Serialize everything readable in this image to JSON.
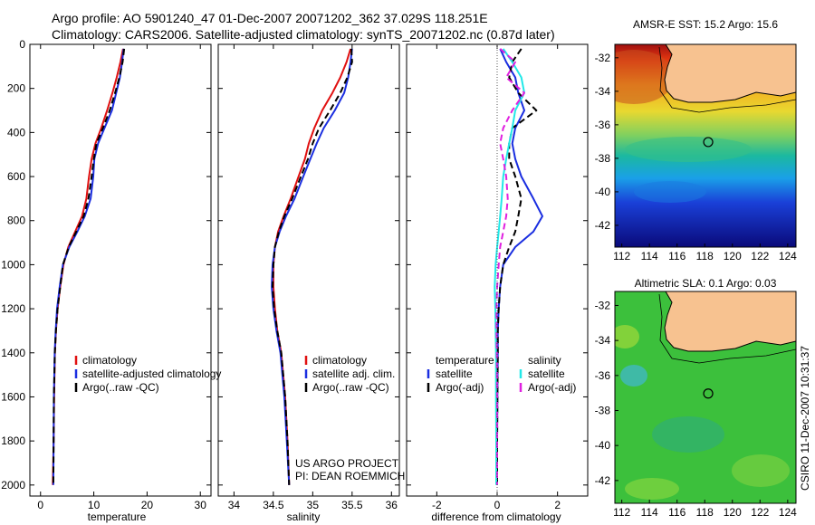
{
  "header": {
    "line1": "Argo profile: AO 5901240_47 01-Dec-2007 20071202_362 37.029S 118.251E",
    "line2": "Climatology: CARS2006. Satellite-adjusted climatology: synTS_20071202.nc (0.87d later)"
  },
  "credit": {
    "project": "US ARGO PROJECT",
    "pi": "PI: DEAN ROEMMICH",
    "stamp": "CSIRO 11-Dec-2007 10:31:37"
  },
  "colors": {
    "climatology": "#e01010",
    "satellite": "#1a2ee0",
    "argo": "#000000",
    "salinity_satellite": "#22e8e8",
    "salinity_argo": "#e020e0",
    "land": "#f7c290"
  },
  "chart_data": [
    {
      "type": "line",
      "id": "temperature",
      "xlabel": "temperature",
      "ylabel": "",
      "xlim": [
        -2,
        32
      ],
      "ylim": [
        2050,
        0
      ],
      "xticks": [
        "0",
        "10",
        "20",
        "30"
      ],
      "yticks": [
        "0",
        "200",
        "400",
        "600",
        "800",
        "1000",
        "1200",
        "1400",
        "1600",
        "1800",
        "2000"
      ],
      "legend": [
        "climatology",
        "satellite-adjusted climatology",
        "Argo(..raw -QC)"
      ],
      "series": [
        {
          "name": "climatology",
          "style": "solid",
          "color": "#e01010",
          "x": [
            15.5,
            15.0,
            14.3,
            13.5,
            12.5,
            11.4,
            10.3,
            9.6,
            9.1,
            8.6,
            7.8,
            6.5,
            5.2,
            4.3,
            3.7,
            3.2,
            2.9,
            2.7,
            2.55,
            2.45,
            2.3
          ],
          "y": [
            20,
            80,
            150,
            220,
            300,
            380,
            450,
            520,
            600,
            700,
            780,
            850,
            920,
            1000,
            1100,
            1200,
            1300,
            1400,
            1600,
            1800,
            2000
          ]
        },
        {
          "name": "satellite-adjusted climatology",
          "style": "solid",
          "color": "#1a2ee0",
          "x": [
            15.6,
            15.3,
            14.9,
            14.2,
            13.4,
            12.0,
            10.8,
            10.1,
            9.9,
            9.4,
            8.3,
            6.9,
            5.4,
            4.2,
            3.6,
            3.1,
            2.85,
            2.65,
            2.5,
            2.45,
            2.4
          ],
          "y": [
            20,
            80,
            150,
            220,
            300,
            380,
            450,
            520,
            600,
            700,
            780,
            850,
            920,
            1000,
            1100,
            1200,
            1300,
            1400,
            1600,
            1800,
            2000
          ]
        },
        {
          "name": "Argo(..raw -QC)",
          "style": "dashed",
          "color": "#000000",
          "x": [
            15.7,
            15.4,
            14.8,
            14.0,
            13.0,
            11.7,
            10.5,
            10.0,
            9.6,
            9.0,
            8.1,
            6.7,
            5.3,
            4.2,
            3.7,
            3.2,
            2.9,
            2.7,
            2.5,
            2.45,
            2.4
          ],
          "y": [
            20,
            80,
            150,
            220,
            300,
            380,
            450,
            520,
            600,
            700,
            780,
            850,
            920,
            1000,
            1100,
            1200,
            1300,
            1400,
            1600,
            1800,
            2000
          ]
        }
      ]
    },
    {
      "type": "line",
      "id": "salinity",
      "xlabel": "salinity",
      "ylabel": "",
      "xlim": [
        33.8,
        36.1
      ],
      "ylim": [
        2050,
        0
      ],
      "xticks": [
        "34",
        "34.5",
        "35",
        "35.5",
        "36"
      ],
      "yticks": [],
      "legend": [
        "climatology",
        "satellite adj. clim.",
        "Argo(..raw -QC)"
      ],
      "series": [
        {
          "name": "climatology",
          "style": "solid",
          "color": "#e01010",
          "x": [
            35.48,
            35.43,
            35.35,
            35.25,
            35.12,
            35.02,
            34.95,
            34.9,
            34.82,
            34.72,
            34.63,
            34.56,
            34.52,
            34.5,
            34.5,
            34.52,
            34.55,
            34.6,
            34.65,
            34.68,
            34.7
          ],
          "y": [
            20,
            80,
            150,
            220,
            300,
            380,
            450,
            520,
            600,
            700,
            780,
            850,
            920,
            1000,
            1100,
            1200,
            1300,
            1400,
            1600,
            1800,
            2000
          ]
        },
        {
          "name": "satellite adj. clim.",
          "style": "solid",
          "color": "#1a2ee0",
          "x": [
            35.5,
            35.48,
            35.45,
            35.4,
            35.28,
            35.14,
            35.05,
            34.97,
            34.88,
            34.77,
            34.66,
            34.58,
            34.52,
            34.49,
            34.48,
            34.5,
            34.54,
            34.59,
            34.64,
            34.67,
            34.7
          ],
          "y": [
            20,
            80,
            150,
            220,
            300,
            380,
            450,
            520,
            600,
            700,
            780,
            850,
            920,
            1000,
            1100,
            1200,
            1300,
            1400,
            1600,
            1800,
            2000
          ]
        },
        {
          "name": "Argo(..raw -QC)",
          "style": "dashed",
          "color": "#000000",
          "x": [
            35.49,
            35.5,
            35.44,
            35.35,
            35.22,
            35.08,
            35.0,
            34.94,
            34.85,
            34.74,
            34.64,
            34.57,
            34.52,
            34.5,
            34.49,
            34.51,
            34.55,
            34.6,
            34.65,
            34.68,
            34.7
          ],
          "y": [
            20,
            80,
            150,
            220,
            300,
            380,
            450,
            520,
            600,
            700,
            780,
            850,
            920,
            1000,
            1100,
            1200,
            1300,
            1400,
            1600,
            1800,
            2000
          ]
        }
      ]
    },
    {
      "type": "line",
      "id": "difference",
      "xlabel": "difference from climatology",
      "ylabel": "",
      "xlim": [
        -3,
        3
      ],
      "ylim": [
        2050,
        0
      ],
      "xticks": [
        "-2",
        "0",
        "2"
      ],
      "yticks": [],
      "legend": [
        "temperature",
        "satellite",
        "Argo(-adj)",
        "salinity",
        "satellite",
        "Argo(-adj)"
      ],
      "series": [
        {
          "name": "satellite",
          "group": "temperature",
          "style": "solid",
          "color": "#1a2ee0",
          "x": [
            0.1,
            0.3,
            0.6,
            0.7,
            0.9,
            0.6,
            0.5,
            0.6,
            0.8,
            1.2,
            1.5,
            1.2,
            0.6,
            0.2,
            0.1,
            0.05,
            0.02,
            0.02,
            0.01,
            0.0,
            0.0
          ],
          "y": [
            20,
            80,
            150,
            220,
            300,
            380,
            450,
            520,
            600,
            700,
            780,
            850,
            920,
            1000,
            1100,
            1200,
            1300,
            1400,
            1600,
            1800,
            2000
          ]
        },
        {
          "name": "Argo(-adj)",
          "group": "temperature",
          "style": "dashed",
          "color": "#000000",
          "x": [
            0.8,
            0.5,
            0.4,
            0.7,
            1.3,
            0.5,
            0.4,
            0.4,
            0.6,
            0.8,
            0.7,
            0.6,
            0.4,
            0.2,
            0.1,
            0.05,
            0.02,
            0.02,
            0.01,
            0.0,
            0.0
          ],
          "y": [
            20,
            80,
            150,
            220,
            300,
            380,
            450,
            520,
            600,
            700,
            780,
            850,
            920,
            1000,
            1100,
            1200,
            1300,
            1400,
            1600,
            1800,
            2000
          ]
        },
        {
          "name": "satellite",
          "group": "salinity",
          "style": "solid",
          "color": "#22e8e8",
          "x": [
            0.2,
            0.5,
            0.8,
            0.9,
            0.6,
            0.5,
            0.4,
            0.3,
            0.2,
            0.15,
            0.1,
            0.05,
            0.0,
            -0.05,
            -0.08,
            -0.06,
            -0.05,
            -0.04,
            -0.04,
            -0.03,
            -0.03
          ],
          "y": [
            20,
            80,
            150,
            220,
            300,
            380,
            450,
            520,
            600,
            700,
            780,
            850,
            920,
            1000,
            1100,
            1200,
            1300,
            1400,
            1600,
            1800,
            2000
          ]
        },
        {
          "name": "Argo(-adj)",
          "group": "salinity",
          "style": "dashed",
          "color": "#e020e0",
          "x": [
            0.1,
            0.6,
            0.3,
            0.9,
            0.5,
            0.2,
            0.1,
            0.2,
            0.3,
            0.35,
            0.3,
            0.2,
            0.1,
            0.05,
            0.0,
            -0.02,
            -0.02,
            -0.01,
            0.0,
            0.0,
            0.0
          ],
          "y": [
            20,
            80,
            150,
            220,
            300,
            380,
            450,
            520,
            600,
            700,
            780,
            850,
            920,
            1000,
            1100,
            1200,
            1300,
            1400,
            1600,
            1800,
            2000
          ]
        }
      ]
    },
    {
      "type": "heatmap",
      "id": "sst_map",
      "title": "AMSR-E SST: 15.2 Argo: 15.6",
      "xlim": [
        111.5,
        124.6
      ],
      "ylim": [
        -43.3,
        -31.2
      ],
      "xticks": [
        "112",
        "114",
        "116",
        "118",
        "120",
        "122",
        "124"
      ],
      "yticks": [
        "-32",
        "-34",
        "-36",
        "-38",
        "-40",
        "-42"
      ],
      "argo_marker": {
        "lon": 118.25,
        "lat": -37.03
      }
    },
    {
      "type": "heatmap",
      "id": "sla_map",
      "title": "Altimetric SLA: 0.1 Argo: 0.03",
      "xlim": [
        111.5,
        124.6
      ],
      "ylim": [
        -43.3,
        -31.2
      ],
      "xticks": [
        "112",
        "114",
        "116",
        "118",
        "120",
        "122",
        "124"
      ],
      "yticks": [
        "-32",
        "-34",
        "-36",
        "-38",
        "-40",
        "-42"
      ],
      "argo_marker": {
        "lon": 118.25,
        "lat": -37.03
      }
    }
  ]
}
